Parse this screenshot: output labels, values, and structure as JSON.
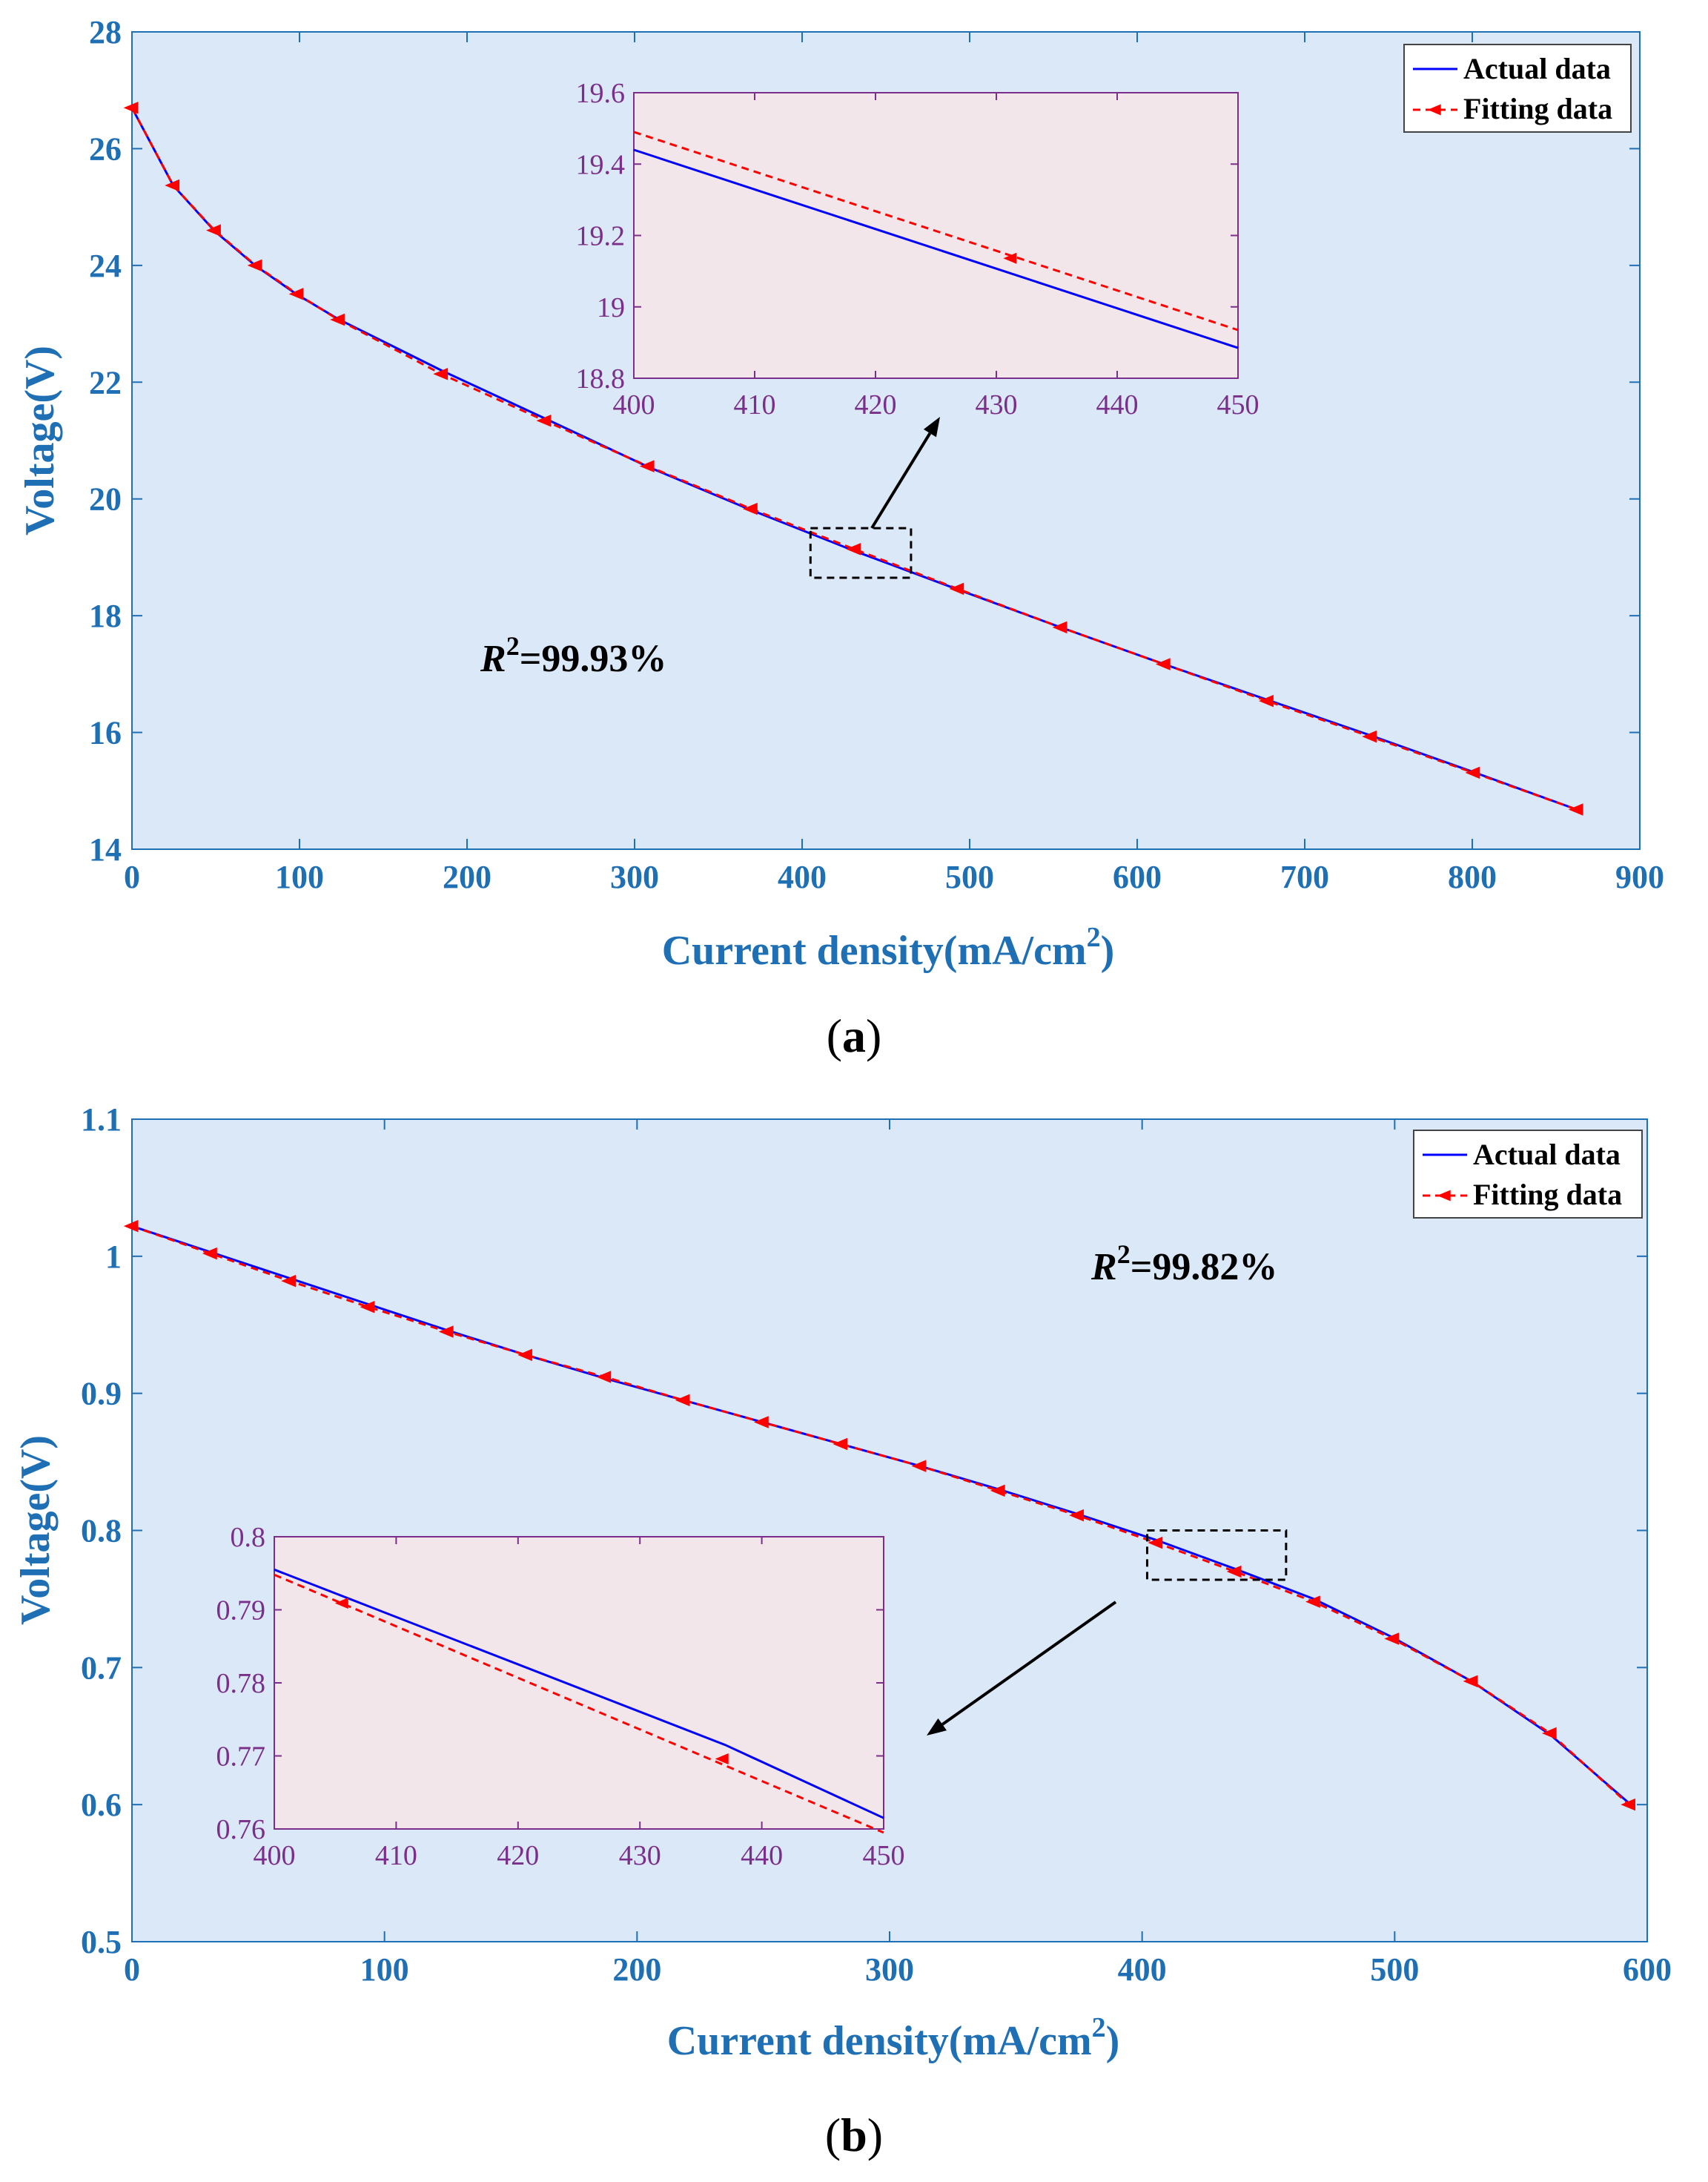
{
  "chart_data": [
    {
      "id": "a",
      "type": "line",
      "panel_label": "a",
      "xlabel": "Current density(mA/cm",
      "xlabel_sup": "2",
      "xlabel_close": ")",
      "ylabel": "Voltage(V)",
      "xlim": [
        0,
        900
      ],
      "ylim": [
        14,
        28
      ],
      "xticks": [
        0,
        100,
        200,
        300,
        400,
        500,
        600,
        700,
        800,
        900
      ],
      "xtick_labels": [
        "0",
        "100",
        "200",
        "300",
        "400",
        "500",
        "600",
        "700",
        "800",
        "900"
      ],
      "yticks": [
        14,
        16,
        18,
        20,
        22,
        24,
        26,
        28
      ],
      "ytick_labels": [
        "14",
        "16",
        "18",
        "20",
        "22",
        "24",
        "26",
        "28"
      ],
      "legend": {
        "position": "top-right",
        "entries": [
          "Actual data",
          "Fitting data"
        ]
      },
      "annotation": {
        "prefix": "R",
        "sup": "2",
        "value": "=99.93%"
      },
      "series": [
        {
          "name": "Actual data",
          "style": "solid",
          "color": "#0000ff",
          "x": [
            0,
            24.6,
            49.3,
            73.9,
            98.6,
            123.2,
            184.8,
            246.4,
            308,
            369.6,
            431.2,
            492.8,
            554.4,
            616,
            677.6,
            739.2,
            800.8,
            862.4
          ],
          "y": [
            26.7,
            25.37,
            24.59,
            23.99,
            23.5,
            23.08,
            22.2,
            21.38,
            20.55,
            19.81,
            19.11,
            18.45,
            17.8,
            17.17,
            16.56,
            15.95,
            15.32,
            14.68
          ]
        },
        {
          "name": "Fitting data",
          "style": "dashed",
          "color": "#ff0000",
          "marker": "left-triangle",
          "x": [
            0,
            24.6,
            49.3,
            73.9,
            98.6,
            123.2,
            184.8,
            246.4,
            308,
            369.6,
            431.2,
            492.8,
            554.4,
            616,
            677.6,
            739.2,
            800.8,
            862.4
          ],
          "y": [
            26.7,
            25.37,
            24.6,
            24.0,
            23.51,
            23.07,
            22.14,
            21.34,
            20.56,
            19.83,
            19.14,
            18.46,
            17.8,
            17.17,
            16.54,
            15.93,
            15.31,
            14.68
          ]
        }
      ],
      "zoom_box": {
        "xlim": [
          405,
          465
        ],
        "ylim": [
          18.65,
          19.5
        ]
      },
      "inset": {
        "xlim": [
          400,
          450
        ],
        "ylim": [
          18.8,
          19.6
        ],
        "xticks": [
          400,
          410,
          420,
          430,
          440,
          450
        ],
        "xtick_labels": [
          "400",
          "410",
          "420",
          "430",
          "440",
          "450"
        ],
        "yticks": [
          18.8,
          19,
          19.2,
          19.4,
          19.6
        ],
        "ytick_labels": [
          "18.8",
          "19",
          "19.2",
          "19.4",
          "19.6"
        ],
        "series": [
          {
            "name": "Actual data",
            "x": [
              400,
              450
            ],
            "y": [
              19.44,
              18.885
            ]
          },
          {
            "name": "Fitting data",
            "x": [
              400,
              450
            ],
            "y": [
              19.49,
              18.935
            ],
            "marker_x": [
              431.2
            ],
            "marker_y": [
              19.136
            ]
          }
        ]
      }
    },
    {
      "id": "b",
      "type": "line",
      "panel_label": "b",
      "xlabel": "Current density(mA/cm",
      "xlabel_sup": "2",
      "xlabel_close": ")",
      "ylabel": "Voltage(V)",
      "xlim": [
        0,
        600
      ],
      "ylim": [
        0.5,
        1.1
      ],
      "xticks": [
        0,
        100,
        200,
        300,
        400,
        500,
        600
      ],
      "xtick_labels": [
        "0",
        "100",
        "200",
        "300",
        "400",
        "500",
        "600"
      ],
      "yticks": [
        0.5,
        0.6,
        0.7,
        0.8,
        0.9,
        1.0,
        1.1
      ],
      "ytick_labels": [
        "0.5",
        "0.6",
        "0.7",
        "0.8",
        "0.9",
        "1",
        "1.1"
      ],
      "legend": {
        "position": "top-right",
        "entries": [
          "Actual data",
          "Fitting data"
        ]
      },
      "annotation": {
        "prefix": "R",
        "sup": "2",
        "value": "=99.82%"
      },
      "series": [
        {
          "name": "Actual data",
          "style": "solid",
          "color": "#0000ff",
          "x": [
            0,
            31.2,
            62.4,
            93.6,
            124.8,
            156,
            187.2,
            218.4,
            249.6,
            280.8,
            312,
            343.2,
            374.4,
            405.6,
            436.8,
            468,
            499.2,
            530.4,
            561.6,
            592.8
          ],
          "y": [
            1.022,
            1.003,
            0.984,
            0.965,
            0.946,
            0.928,
            0.911,
            0.895,
            0.879,
            0.863,
            0.847,
            0.83,
            0.812,
            0.793,
            0.772,
            0.75,
            0.722,
            0.69,
            0.651,
            0.601
          ]
        },
        {
          "name": "Fitting data",
          "style": "dashed",
          "color": "#ff0000",
          "marker": "left-triangle",
          "x": [
            0,
            31.2,
            62.4,
            93.6,
            124.8,
            156,
            187.2,
            218.4,
            249.6,
            280.8,
            312,
            343.2,
            374.4,
            405.6,
            436.8,
            468,
            499.2,
            530.4,
            561.6,
            592.8
          ],
          "y": [
            1.022,
            1.002,
            0.982,
            0.963,
            0.945,
            0.928,
            0.912,
            0.895,
            0.879,
            0.863,
            0.847,
            0.829,
            0.811,
            0.791,
            0.77,
            0.748,
            0.721,
            0.69,
            0.652,
            0.6
          ]
        }
      ],
      "zoom_box": {
        "xlim": [
          402,
          457
        ],
        "ylim": [
          0.764,
          0.8
        ]
      },
      "inset": {
        "xlim": [
          400,
          450
        ],
        "ylim": [
          0.76,
          0.8
        ],
        "xticks": [
          400,
          410,
          420,
          430,
          440,
          450
        ],
        "xtick_labels": [
          "400",
          "410",
          "420",
          "430",
          "440",
          "450"
        ],
        "yticks": [
          0.76,
          0.77,
          0.78,
          0.79,
          0.8
        ],
        "ytick_labels": [
          "0.76",
          "0.77",
          "0.78",
          "0.79",
          "0.8"
        ],
        "series": [
          {
            "name": "Actual data",
            "x": [
              400,
              437,
              450
            ],
            "y": [
              0.7955,
              0.7715,
              0.7615
            ]
          },
          {
            "name": "Fitting data",
            "x": [
              400,
              450
            ],
            "y": [
              0.7948,
              0.7595
            ],
            "marker_x": [
              405.6,
              436.8
            ],
            "marker_y": [
              0.7909,
              0.7696
            ]
          }
        ]
      }
    }
  ]
}
